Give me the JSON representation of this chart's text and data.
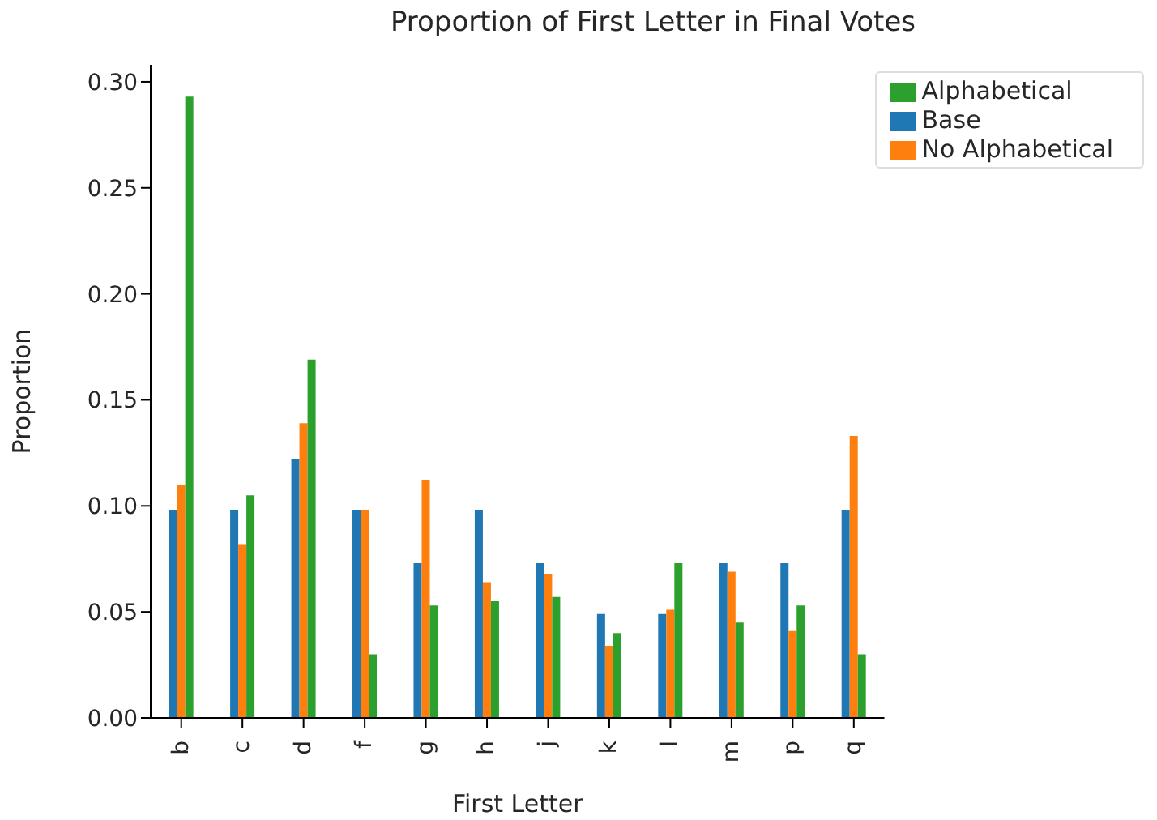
{
  "chart_data": {
    "type": "bar",
    "title": "Proportion of First Letter in Final Votes",
    "xlabel": "First Letter",
    "ylabel": "Proportion",
    "categories": [
      "b",
      "c",
      "d",
      "f",
      "g",
      "h",
      "j",
      "k",
      "l",
      "m",
      "p",
      "q"
    ],
    "series": [
      {
        "name": "Base",
        "color": "#1f77b4",
        "values": [
          0.098,
          0.098,
          0.122,
          0.098,
          0.073,
          0.098,
          0.073,
          0.049,
          0.049,
          0.073,
          0.073,
          0.098
        ]
      },
      {
        "name": "No Alphabetical",
        "color": "#ff7f0e",
        "values": [
          0.11,
          0.082,
          0.139,
          0.098,
          0.112,
          0.064,
          0.068,
          0.034,
          0.051,
          0.069,
          0.041,
          0.133
        ]
      },
      {
        "name": "Alphabetical",
        "color": "#2ca02c",
        "values": [
          0.293,
          0.105,
          0.169,
          0.03,
          0.053,
          0.055,
          0.057,
          0.04,
          0.073,
          0.045,
          0.053,
          0.03
        ]
      }
    ],
    "ylim": [
      0,
      0.308
    ],
    "yticks": [
      {
        "value": 0,
        "label": "0.00"
      },
      {
        "value": 0.05,
        "label": "0.05"
      },
      {
        "value": 0.1,
        "label": "0.10"
      },
      {
        "value": 0.15,
        "label": "0.15"
      },
      {
        "value": 0.2,
        "label": "0.20"
      },
      {
        "value": 0.25,
        "label": "0.25"
      },
      {
        "value": 0.3,
        "label": "0.30"
      }
    ],
    "legend": "top right",
    "grid": false
  }
}
